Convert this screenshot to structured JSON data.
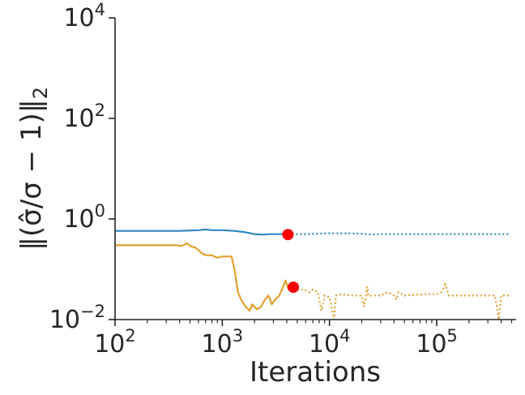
{
  "chart_data": {
    "type": "line",
    "title": "",
    "xlabel": "Iterations",
    "ylabel": "‖(σ̂/σ − 1)‖",
    "ylabel_subscript": "2",
    "x_scale": "log",
    "y_scale": "log",
    "xlim": [
      100,
      550000
    ],
    "ylim": [
      0.01,
      10000
    ],
    "x_ticks": [
      {
        "value": 100,
        "base": "10",
        "exp": "2"
      },
      {
        "value": 1000,
        "base": "10",
        "exp": "3"
      },
      {
        "value": 10000,
        "base": "10",
        "exp": "4"
      },
      {
        "value": 100000,
        "base": "10",
        "exp": "5"
      }
    ],
    "y_ticks": [
      {
        "value": 0.01,
        "base": "10",
        "exp": "−2"
      },
      {
        "value": 1,
        "base": "10",
        "exp": "0"
      },
      {
        "value": 100,
        "base": "10",
        "exp": "2"
      },
      {
        "value": 10000,
        "base": "10",
        "exp": "4"
      }
    ],
    "grid": false,
    "colors": {
      "blue": "#2e86c1",
      "orange": "#e0a030",
      "marker": "#ff0000",
      "axis": "#262626"
    },
    "series": [
      {
        "color": "blue",
        "solid": [
          [
            100,
            0.58
          ],
          [
            200,
            0.58
          ],
          [
            400,
            0.58
          ],
          [
            600,
            0.6
          ],
          [
            700,
            0.62
          ],
          [
            800,
            0.6
          ],
          [
            1000,
            0.6
          ],
          [
            1300,
            0.58
          ],
          [
            1600,
            0.55
          ],
          [
            2000,
            0.5
          ],
          [
            2400,
            0.49
          ],
          [
            2800,
            0.5
          ],
          [
            3300,
            0.5
          ],
          [
            4100,
            0.5
          ]
        ],
        "dotted": [
          [
            4100,
            0.5
          ],
          [
            6000,
            0.5
          ],
          [
            10000,
            0.52
          ],
          [
            20000,
            0.51
          ],
          [
            25000,
            0.49
          ],
          [
            30000,
            0.5
          ],
          [
            60000,
            0.5
          ],
          [
            100000,
            0.5
          ],
          [
            200000,
            0.5
          ],
          [
            480000,
            0.5
          ]
        ],
        "marker": [
          4100,
          0.49
        ]
      },
      {
        "color": "orange",
        "solid": [
          [
            100,
            0.3
          ],
          [
            200,
            0.3
          ],
          [
            380,
            0.3
          ],
          [
            420,
            0.29
          ],
          [
            470,
            0.33
          ],
          [
            500,
            0.29
          ],
          [
            560,
            0.27
          ],
          [
            600,
            0.24
          ],
          [
            660,
            0.2
          ],
          [
            720,
            0.19
          ],
          [
            800,
            0.19
          ],
          [
            900,
            0.17
          ],
          [
            1000,
            0.18
          ],
          [
            1150,
            0.18
          ],
          [
            1220,
            0.18
          ],
          [
            1300,
            0.1
          ],
          [
            1400,
            0.035
          ],
          [
            1500,
            0.025
          ],
          [
            1650,
            0.018
          ],
          [
            1750,
            0.016
          ],
          [
            1800,
            0.015
          ],
          [
            1900,
            0.02
          ],
          [
            2100,
            0.016
          ],
          [
            2300,
            0.018
          ],
          [
            2500,
            0.025
          ],
          [
            2700,
            0.03
          ],
          [
            2900,
            0.02
          ],
          [
            3100,
            0.025
          ],
          [
            3400,
            0.03
          ],
          [
            3700,
            0.045
          ],
          [
            3900,
            0.06
          ],
          [
            4100,
            0.042
          ],
          [
            4300,
            0.05
          ],
          [
            4700,
            0.045
          ]
        ],
        "dotted": [
          [
            4700,
            0.045
          ],
          [
            5200,
            0.038
          ],
          [
            5700,
            0.04
          ],
          [
            6500,
            0.035
          ],
          [
            7000,
            0.04
          ],
          [
            7800,
            0.035
          ],
          [
            8400,
            0.015
          ],
          [
            9000,
            0.03
          ],
          [
            10000,
            0.028
          ],
          [
            11000,
            0.01
          ],
          [
            11500,
            0.03
          ],
          [
            13000,
            0.032
          ],
          [
            16000,
            0.03
          ],
          [
            20000,
            0.03
          ],
          [
            21000,
            0.018
          ],
          [
            22000,
            0.03
          ],
          [
            22500,
            0.045
          ],
          [
            23000,
            0.03
          ],
          [
            30000,
            0.03
          ],
          [
            35000,
            0.035
          ],
          [
            40000,
            0.03
          ],
          [
            42000,
            0.025
          ],
          [
            44000,
            0.035
          ],
          [
            50000,
            0.03
          ],
          [
            80000,
            0.032
          ],
          [
            100000,
            0.032
          ],
          [
            110000,
            0.035
          ],
          [
            120000,
            0.05
          ],
          [
            130000,
            0.03
          ],
          [
            200000,
            0.03
          ],
          [
            350000,
            0.03
          ],
          [
            380000,
            0.01
          ],
          [
            400000,
            0.03
          ],
          [
            480000,
            0.03
          ]
        ],
        "marker": [
          4600,
          0.044
        ]
      }
    ]
  }
}
